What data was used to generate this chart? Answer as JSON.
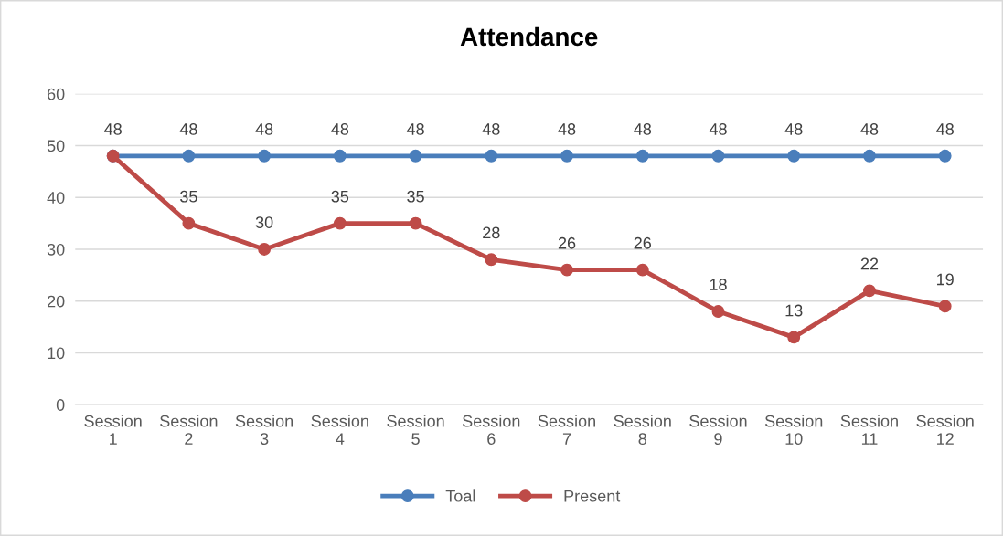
{
  "chart_data": {
    "type": "line",
    "title": "Attendance",
    "categories": [
      "Session 1",
      "Session 2",
      "Session 3",
      "Session 4",
      "Session 5",
      "Session 6",
      "Session 7",
      "Session 8",
      "Session 9",
      "Session 10",
      "Session 11",
      "Session 12"
    ],
    "series": [
      {
        "name": "Toal",
        "color": "#4a7ebb",
        "values": [
          48,
          48,
          48,
          48,
          48,
          48,
          48,
          48,
          48,
          48,
          48,
          48
        ]
      },
      {
        "name": "Present",
        "color": "#be4b48",
        "values": [
          48,
          35,
          30,
          35,
          35,
          28,
          26,
          26,
          18,
          13,
          22,
          19
        ],
        "value_labels": [
          null,
          "35",
          "30",
          "35",
          "35",
          "28",
          "26",
          "26",
          "18",
          "13",
          "22",
          "19"
        ]
      }
    ],
    "ylim": [
      0,
      60
    ],
    "yticks": [
      0,
      10,
      20,
      30,
      40,
      50,
      60
    ],
    "grid": "y",
    "legend": "bottom",
    "marker": "circle",
    "line_style": "solid",
    "data_labels": true
  }
}
